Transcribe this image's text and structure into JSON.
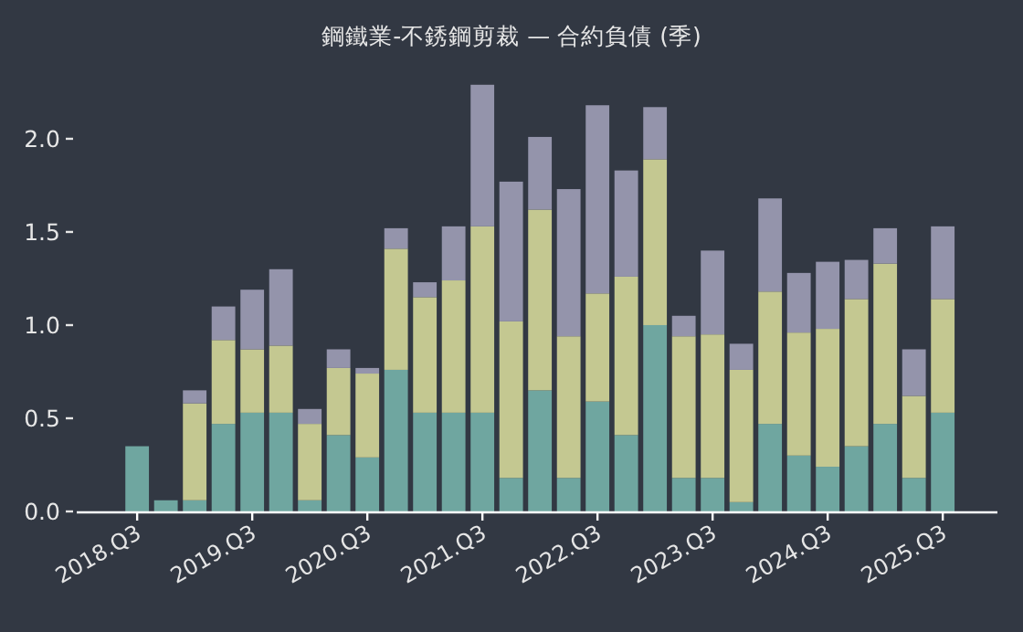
{
  "chart_data": {
    "type": "bar",
    "title": "鋼鐵業-不銹鋼剪裁 — 合約負債 (季)",
    "stacked": true,
    "categories": [
      "2018.Q3",
      null,
      null,
      null,
      "2019.Q3",
      null,
      null,
      null,
      "2020.Q3",
      null,
      null,
      null,
      "2021.Q3",
      null,
      null,
      null,
      "2022.Q3",
      null,
      null,
      null,
      "2023.Q3",
      null,
      null,
      null,
      "2024.Q3",
      null,
      null,
      null,
      "2025.Q3"
    ],
    "series": [
      {
        "color": "#6fa6a0",
        "values": [
          0.35,
          0.06,
          0.06,
          0.47,
          0.53,
          0.53,
          0.06,
          0.41,
          0.29,
          0.76,
          0.53,
          0.53,
          0.53,
          0.18,
          0.65,
          0.18,
          0.59,
          0.41,
          1.0,
          0.18,
          0.18,
          0.05,
          0.47,
          0.3,
          0.24,
          0.35,
          0.47,
          0.18,
          0.53
        ]
      },
      {
        "color": "#c4c891",
        "values": [
          0,
          0,
          0.52,
          0.45,
          0.34,
          0.36,
          0.41,
          0.36,
          0.45,
          0.65,
          0.62,
          0.71,
          1.0,
          0.84,
          0.97,
          0.76,
          0.58,
          0.85,
          0.89,
          0.76,
          0.77,
          0.71,
          0.71,
          0.66,
          0.74,
          0.79,
          0.86,
          0.44,
          0.61
        ]
      },
      {
        "color": "#9494ab",
        "values": [
          0,
          0,
          0.07,
          0.18,
          0.32,
          0.41,
          0.08,
          0.1,
          0.03,
          0.11,
          0.08,
          0.29,
          0.76,
          0.75,
          0.39,
          0.79,
          1.01,
          0.57,
          0.28,
          0.11,
          0.45,
          0.14,
          0.5,
          0.32,
          0.36,
          0.21,
          0.19,
          0.25,
          0.39
        ]
      }
    ],
    "yticks": [
      {
        "value": 0,
        "label": "0.0"
      },
      {
        "value": 0.5,
        "label": "0.5"
      },
      {
        "value": 1,
        "label": "1.0"
      },
      {
        "value": 1.5,
        "label": "1.5"
      },
      {
        "value": 2,
        "label": "2.0"
      }
    ],
    "ylim": [
      0,
      2.29
    ],
    "grid": false
  }
}
